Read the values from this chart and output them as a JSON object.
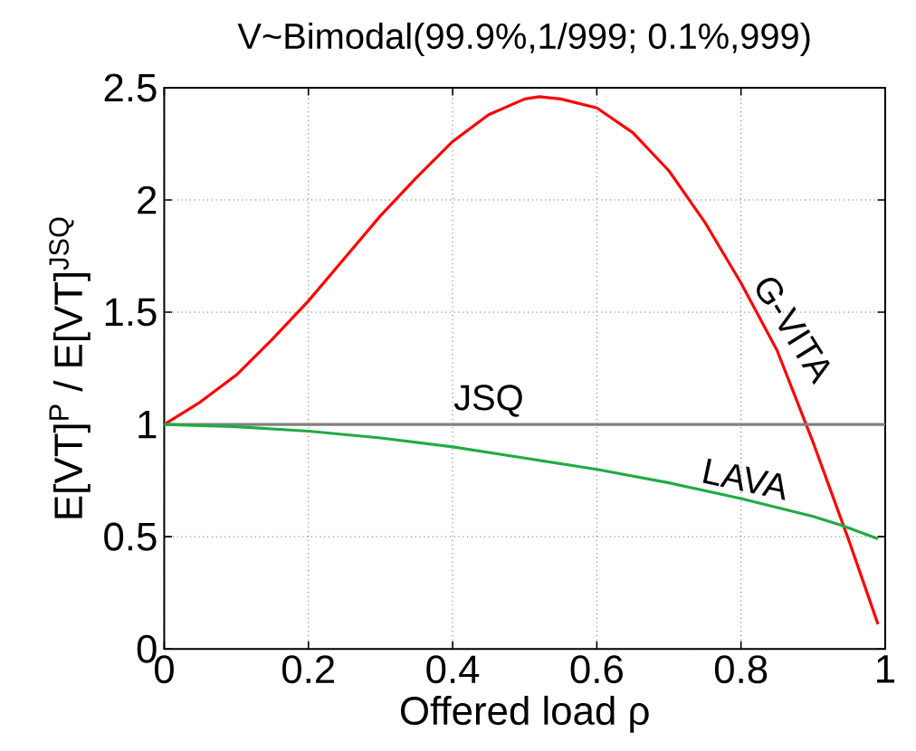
{
  "chart_data": {
    "type": "line",
    "title": "V~Bimodal(99.9%,1/999; 0.1%,999)",
    "xlabel": "Offered load ρ",
    "ylabel": "E[VT]$^{P}$ / E[VT]$^{JSQ}$",
    "xlim": [
      0,
      1
    ],
    "ylim": [
      0,
      2.5
    ],
    "xticks": [
      0,
      0.2,
      0.4,
      0.6,
      0.8,
      1
    ],
    "yticks": [
      0,
      0.5,
      1,
      1.5,
      2,
      2.5
    ],
    "grid": true,
    "legend": false,
    "marker": "none",
    "line_style": "solid",
    "series": [
      {
        "name": "G-VITA",
        "color": "#ff0000",
        "x": [
          0,
          0.05,
          0.1,
          0.15,
          0.2,
          0.25,
          0.3,
          0.35,
          0.4,
          0.45,
          0.5,
          0.52,
          0.55,
          0.6,
          0.65,
          0.7,
          0.75,
          0.8,
          0.85,
          0.9,
          0.95,
          0.99
        ],
        "values": [
          1,
          1.1,
          1.22,
          1.38,
          1.55,
          1.74,
          1.93,
          2.1,
          2.26,
          2.38,
          2.45,
          2.46,
          2.45,
          2.41,
          2.3,
          2.13,
          1.9,
          1.63,
          1.33,
          0.92,
          0.48,
          0.11
        ]
      },
      {
        "name": "JSQ",
        "color": "#808080",
        "x": [
          0,
          1
        ],
        "values": [
          1,
          1
        ]
      },
      {
        "name": "LAVA",
        "color": "#22aa44",
        "x": [
          0,
          0.1,
          0.2,
          0.3,
          0.4,
          0.5,
          0.6,
          0.7,
          0.8,
          0.9,
          0.94,
          0.99
        ],
        "values": [
          1,
          0.99,
          0.97,
          0.94,
          0.9,
          0.85,
          0.8,
          0.74,
          0.67,
          0.59,
          0.55,
          0.49
        ]
      }
    ]
  }
}
